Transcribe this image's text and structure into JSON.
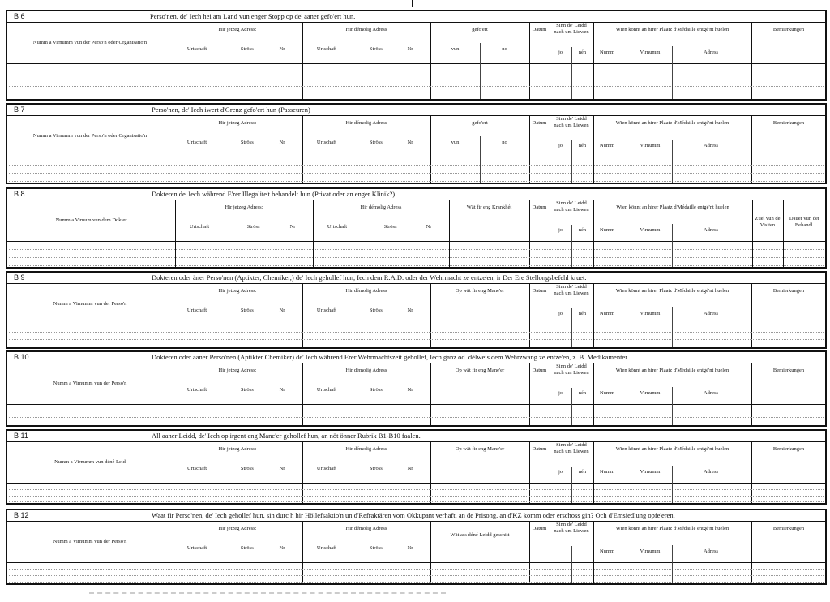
{
  "common": {
    "jetzeg": "Hir jetzeg Adress:",
    "demolig": "Hir démolig Adress",
    "urtschaft": "Urtschaft",
    "stross": "Ströss",
    "nr": "Nr",
    "datum": "Datum",
    "sinn": "Sinn de' Leidd nach um Liewen",
    "jo": "jo",
    "nen": "nén",
    "wien": "Wien könnt an hirer Plaatz d'Médaille entgé'nt huelen",
    "numm": "Numm",
    "virnumm": "Virnumm",
    "adress": "Adress",
    "bemierkungen": "Bemierkungen"
  },
  "sections": [
    {
      "id": "B 6",
      "title": "Perso'nen, de' Iech hei am Land vun enger Stopp op de' aaner gefo'ert hun.",
      "name_header": "Numm a Virnumm vun der Perso'n oder Organisatio'n",
      "middle": "gefo'ert",
      "middle_sub": [
        "vun",
        "no"
      ]
    },
    {
      "id": "B 7",
      "title": "Perso'nen, de' Iech iwert d'Grenz gefo'ert hun (Passeuren)",
      "name_header": "Numm a Virnumm vun der Perso'n oder Organisatio'n",
      "middle": "gefo'ert",
      "middle_sub": [
        "vun",
        "no"
      ]
    },
    {
      "id": "B 8",
      "title": "Dokteren de' Iech während E'rer Illegalite't behandelt hun (Privat oder an enger Klinik?)",
      "name_header": "Numm a Virnum vun dem Dokter",
      "middle": "Wät fir eng Krankhét",
      "extra": [
        "Zuel vun de Visiten",
        "Dauer vun der Behandl."
      ]
    },
    {
      "id": "B 9",
      "title": "Dokteren oder äner Perso'nen (Aptikter, Chemiker,) de' Iech gehollef hun, Iech dem R.A.D. oder der Wehrmacht ze entze'en, ir Der Ere Stellongsbefehl kruet.",
      "name_header": "Numm a Virnumm vun der Perso'n",
      "middle": "Op wät fir eng Mane'er"
    },
    {
      "id": "B 10",
      "title": "Dokteren oder aaner Perso'nen (Aptikter Chemiker) de' Iech während Erer Wehrmachtszeit gehollef, Iech ganz od. dëlweis dem Wehrzwang ze entze'en, z. B. Medikamenter.",
      "name_header": "Numm a Virnumm vun der Perso'n",
      "middle": "Op wät fir eng Mane'er"
    },
    {
      "id": "B 11",
      "title": "All aaner Leidd, de' Iech op irgent eng Mane'er gehollef hun, an nöt önner Rubrik B1-B10 faalen.",
      "name_header": "Numm a Virnumm vun déné Leid",
      "middle": "Op wät fir eng Mane'er"
    },
    {
      "id": "B 12",
      "title": "Waat fir Perso'nen, de' Iech gehollef hun, sin durc h hir Höllefsaktio'n un d'Refraktären vom Okkupant verhaft, an de Prisong, an d'KZ komm oder erschoss gin? Och d'Emsiedlung opfe'eren.",
      "name_header": "Numm a Virnumm vun der Perso'n",
      "middle": "Wät ass déné Leidd geschitt",
      "no_jo_nen": true
    }
  ]
}
